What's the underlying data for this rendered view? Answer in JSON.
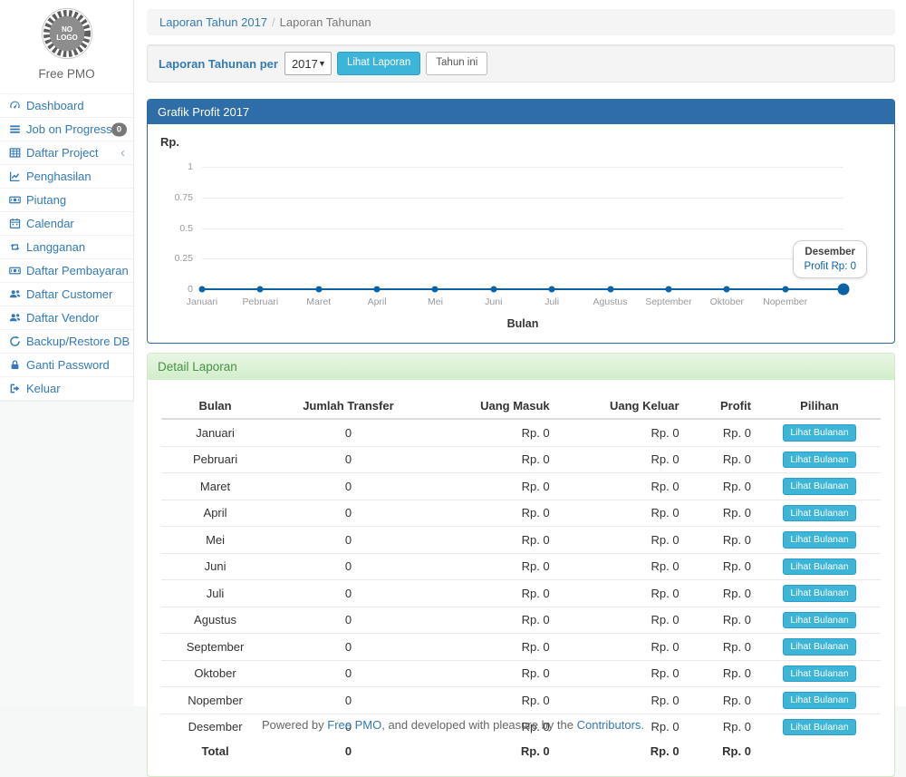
{
  "sidebar": {
    "logo_text_line1": "NO",
    "logo_text_line2": "LOGO",
    "brand": "Free PMO",
    "items": [
      {
        "icon": "dashboard-icon",
        "label": "Dashboard"
      },
      {
        "icon": "tasks-icon",
        "label": "Job on Progress",
        "badge": "0"
      },
      {
        "icon": "table-icon",
        "label": "Daftar Project",
        "chevron": true
      },
      {
        "icon": "line-chart-icon",
        "label": "Penghasilan"
      },
      {
        "icon": "money-icon",
        "label": "Piutang"
      },
      {
        "icon": "calendar-icon",
        "label": "Calendar"
      },
      {
        "icon": "retweet-icon",
        "label": "Langganan"
      },
      {
        "icon": "money-icon",
        "label": "Daftar Pembayaran"
      },
      {
        "icon": "users-icon",
        "label": "Daftar Customer"
      },
      {
        "icon": "users-icon",
        "label": "Daftar Vendor"
      },
      {
        "icon": "refresh-icon",
        "label": "Backup/Restore DB"
      },
      {
        "icon": "lock-icon",
        "label": "Ganti Password"
      },
      {
        "icon": "signout-icon",
        "label": "Keluar"
      }
    ]
  },
  "breadcrumb": {
    "link": "Laporan Tahun 2017",
    "separator": "/",
    "current": "Laporan Tahunan"
  },
  "filter": {
    "label": "Laporan Tahunan per",
    "year": "2017",
    "submit_label": "Lihat Laporan",
    "this_year_label": "Tahun ini"
  },
  "chart_data": {
    "type": "line",
    "title": "Grafik Profit 2017",
    "ylabel": "Rp.",
    "xlabel": "Bulan",
    "categories": [
      "Januari",
      "Pebruari",
      "Maret",
      "April",
      "Mei",
      "Juni",
      "Juli",
      "Agustus",
      "September",
      "Oktober",
      "Nopember",
      "Desember"
    ],
    "values": [
      0,
      0,
      0,
      0,
      0,
      0,
      0,
      0,
      0,
      0,
      0,
      0
    ],
    "yticks": [
      1,
      0.75,
      0.5,
      0.25,
      0
    ],
    "ylim": [
      0,
      1
    ],
    "grid": true,
    "show_last_x_label": false,
    "line_color": "#0b62a4",
    "highlight_index": 11,
    "tooltip": {
      "label": "Desember",
      "value": "Profit Rp: 0"
    }
  },
  "report": {
    "title": "Detail Laporan",
    "columns": [
      "Bulan",
      "Jumlah Transfer",
      "Uang Masuk",
      "Uang Keluar",
      "Profit",
      "Pilihan"
    ],
    "action_label": "Lihat Bulanan",
    "rows": [
      {
        "month": "Januari",
        "transfer": "0",
        "masuk": "Rp. 0",
        "keluar": "Rp. 0",
        "profit": "Rp. 0"
      },
      {
        "month": "Pebruari",
        "transfer": "0",
        "masuk": "Rp. 0",
        "keluar": "Rp. 0",
        "profit": "Rp. 0"
      },
      {
        "month": "Maret",
        "transfer": "0",
        "masuk": "Rp. 0",
        "keluar": "Rp. 0",
        "profit": "Rp. 0"
      },
      {
        "month": "April",
        "transfer": "0",
        "masuk": "Rp. 0",
        "keluar": "Rp. 0",
        "profit": "Rp. 0"
      },
      {
        "month": "Mei",
        "transfer": "0",
        "masuk": "Rp. 0",
        "keluar": "Rp. 0",
        "profit": "Rp. 0"
      },
      {
        "month": "Juni",
        "transfer": "0",
        "masuk": "Rp. 0",
        "keluar": "Rp. 0",
        "profit": "Rp. 0"
      },
      {
        "month": "Juli",
        "transfer": "0",
        "masuk": "Rp. 0",
        "keluar": "Rp. 0",
        "profit": "Rp. 0"
      },
      {
        "month": "Agustus",
        "transfer": "0",
        "masuk": "Rp. 0",
        "keluar": "Rp. 0",
        "profit": "Rp. 0"
      },
      {
        "month": "September",
        "transfer": "0",
        "masuk": "Rp. 0",
        "keluar": "Rp. 0",
        "profit": "Rp. 0"
      },
      {
        "month": "Oktober",
        "transfer": "0",
        "masuk": "Rp. 0",
        "keluar": "Rp. 0",
        "profit": "Rp. 0"
      },
      {
        "month": "Nopember",
        "transfer": "0",
        "masuk": "Rp. 0",
        "keluar": "Rp. 0",
        "profit": "Rp. 0"
      },
      {
        "month": "Desember",
        "transfer": "0",
        "masuk": "Rp. 0",
        "keluar": "Rp. 0",
        "profit": "Rp. 0"
      }
    ],
    "total": {
      "label": "Total",
      "transfer": "0",
      "masuk": "Rp. 0",
      "keluar": "Rp. 0",
      "profit": "Rp. 0"
    }
  },
  "footer": {
    "pre": "Powered by ",
    "link1": "Free PMO",
    "mid": ", and developed with pleasure by the ",
    "link2": "Contributors."
  },
  "colors": {
    "primary_panel": "#2f6da8",
    "success_heading_bg": "#dff0d8",
    "success_heading_text": "#459245",
    "link": "#337ab7",
    "info_button": "#3db5d8",
    "chart_line": "#0b62a4",
    "badge_bg": "#777777"
  }
}
